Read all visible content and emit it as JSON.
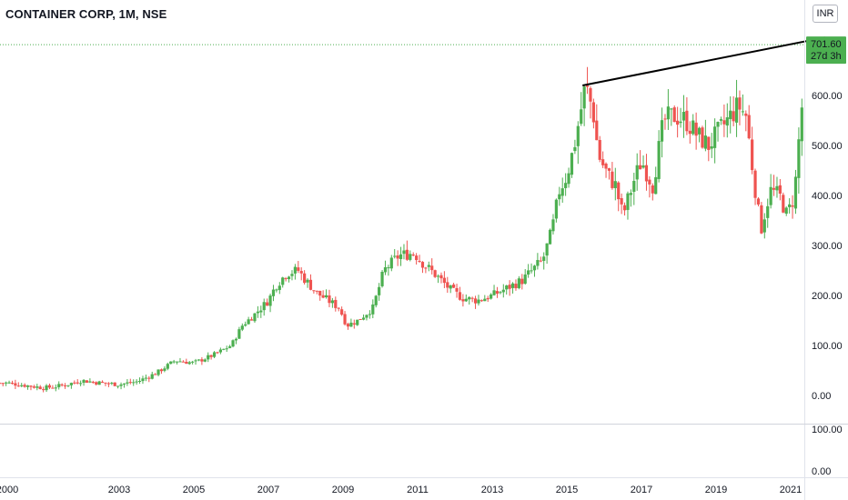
{
  "header": {
    "title": "CONTAINER CORP, 1M, NSE",
    "currency_button": "INR"
  },
  "last_price": {
    "value_label": "701.60",
    "countdown_label": "27d 3h",
    "color": "#4caf50"
  },
  "colors": {
    "up": "#4caf50",
    "down": "#ef5350",
    "trendline": "#000000",
    "grid": "#f0f3fa",
    "axis_text": "#131722"
  },
  "chart_data": [
    {
      "type": "candlestick",
      "title": "CONTAINER CORP, 1M, NSE",
      "xlabel": "",
      "ylabel": "",
      "xlim": [
        1999.8,
        2021.85
      ],
      "ylim": [
        -50,
        760
      ],
      "x_ticks": [
        "2000",
        "2003",
        "2005",
        "2007",
        "2009",
        "2011",
        "2013",
        "2015",
        "2017",
        "2019",
        "2021"
      ],
      "x_tick_values": [
        2000,
        2003,
        2005,
        2007,
        2009,
        2011,
        2013,
        2015,
        2017,
        2019,
        2021
      ],
      "y_ticks": [
        "0.00",
        "100.00",
        "200.00",
        "300.00",
        "400.00",
        "500.00",
        "600.00"
      ],
      "y_tick_values": [
        0,
        100,
        200,
        300,
        400,
        500,
        600
      ],
      "grid": false,
      "trendline": {
        "x": [
          2015.42,
          2021.92
        ],
        "y": [
          620,
          716
        ]
      },
      "last_value": 701.6,
      "anchors": {
        "t": [
          2000.0,
          2000.5,
          2001.0,
          2001.5,
          2002.0,
          2002.5,
          2003.0,
          2003.5,
          2004.0,
          2004.5,
          2005.0,
          2005.5,
          2006.0,
          2006.3,
          2006.6,
          2007.0,
          2007.2,
          2007.5,
          2007.8,
          2008.0,
          2008.3,
          2008.6,
          2008.9,
          2009.1,
          2009.4,
          2009.8,
          2010.1,
          2010.5,
          2010.9,
          2011.2,
          2011.5,
          2011.9,
          2012.2,
          2012.6,
          2013.0,
          2013.4,
          2013.8,
          2014.2,
          2014.35,
          2014.6,
          2014.8,
          2015.0,
          2015.2,
          2015.35,
          2015.5,
          2015.7,
          2015.85,
          2016.1,
          2016.3,
          2016.5,
          2016.8,
          2017.0,
          2017.3,
          2017.6,
          2017.9,
          2018.2,
          2018.5,
          2018.8,
          2019.1,
          2019.4,
          2019.6,
          2019.8,
          2020.0,
          2020.2,
          2020.45,
          2020.7,
          2020.9,
          2021.1,
          2021.25,
          2021.4,
          2021.5
        ],
        "v": [
          25,
          20,
          15,
          20,
          30,
          25,
          22,
          28,
          45,
          70,
          65,
          80,
          100,
          140,
          160,
          190,
          220,
          245,
          250,
          230,
          205,
          190,
          175,
          140,
          150,
          175,
          250,
          280,
          285,
          260,
          240,
          210,
          195,
          190,
          200,
          215,
          230,
          260,
          270,
          330,
          410,
          440,
          500,
          560,
          620,
          570,
          480,
          440,
          420,
          360,
          430,
          470,
          420,
          550,
          560,
          550,
          520,
          500,
          530,
          560,
          580,
          560,
          440,
          330,
          410,
          400,
          360,
          400,
          540,
          650,
          701.6
        ]
      },
      "volume_pane": {
        "y_ticks": [
          "100.00",
          "0.00"
        ]
      }
    }
  ]
}
